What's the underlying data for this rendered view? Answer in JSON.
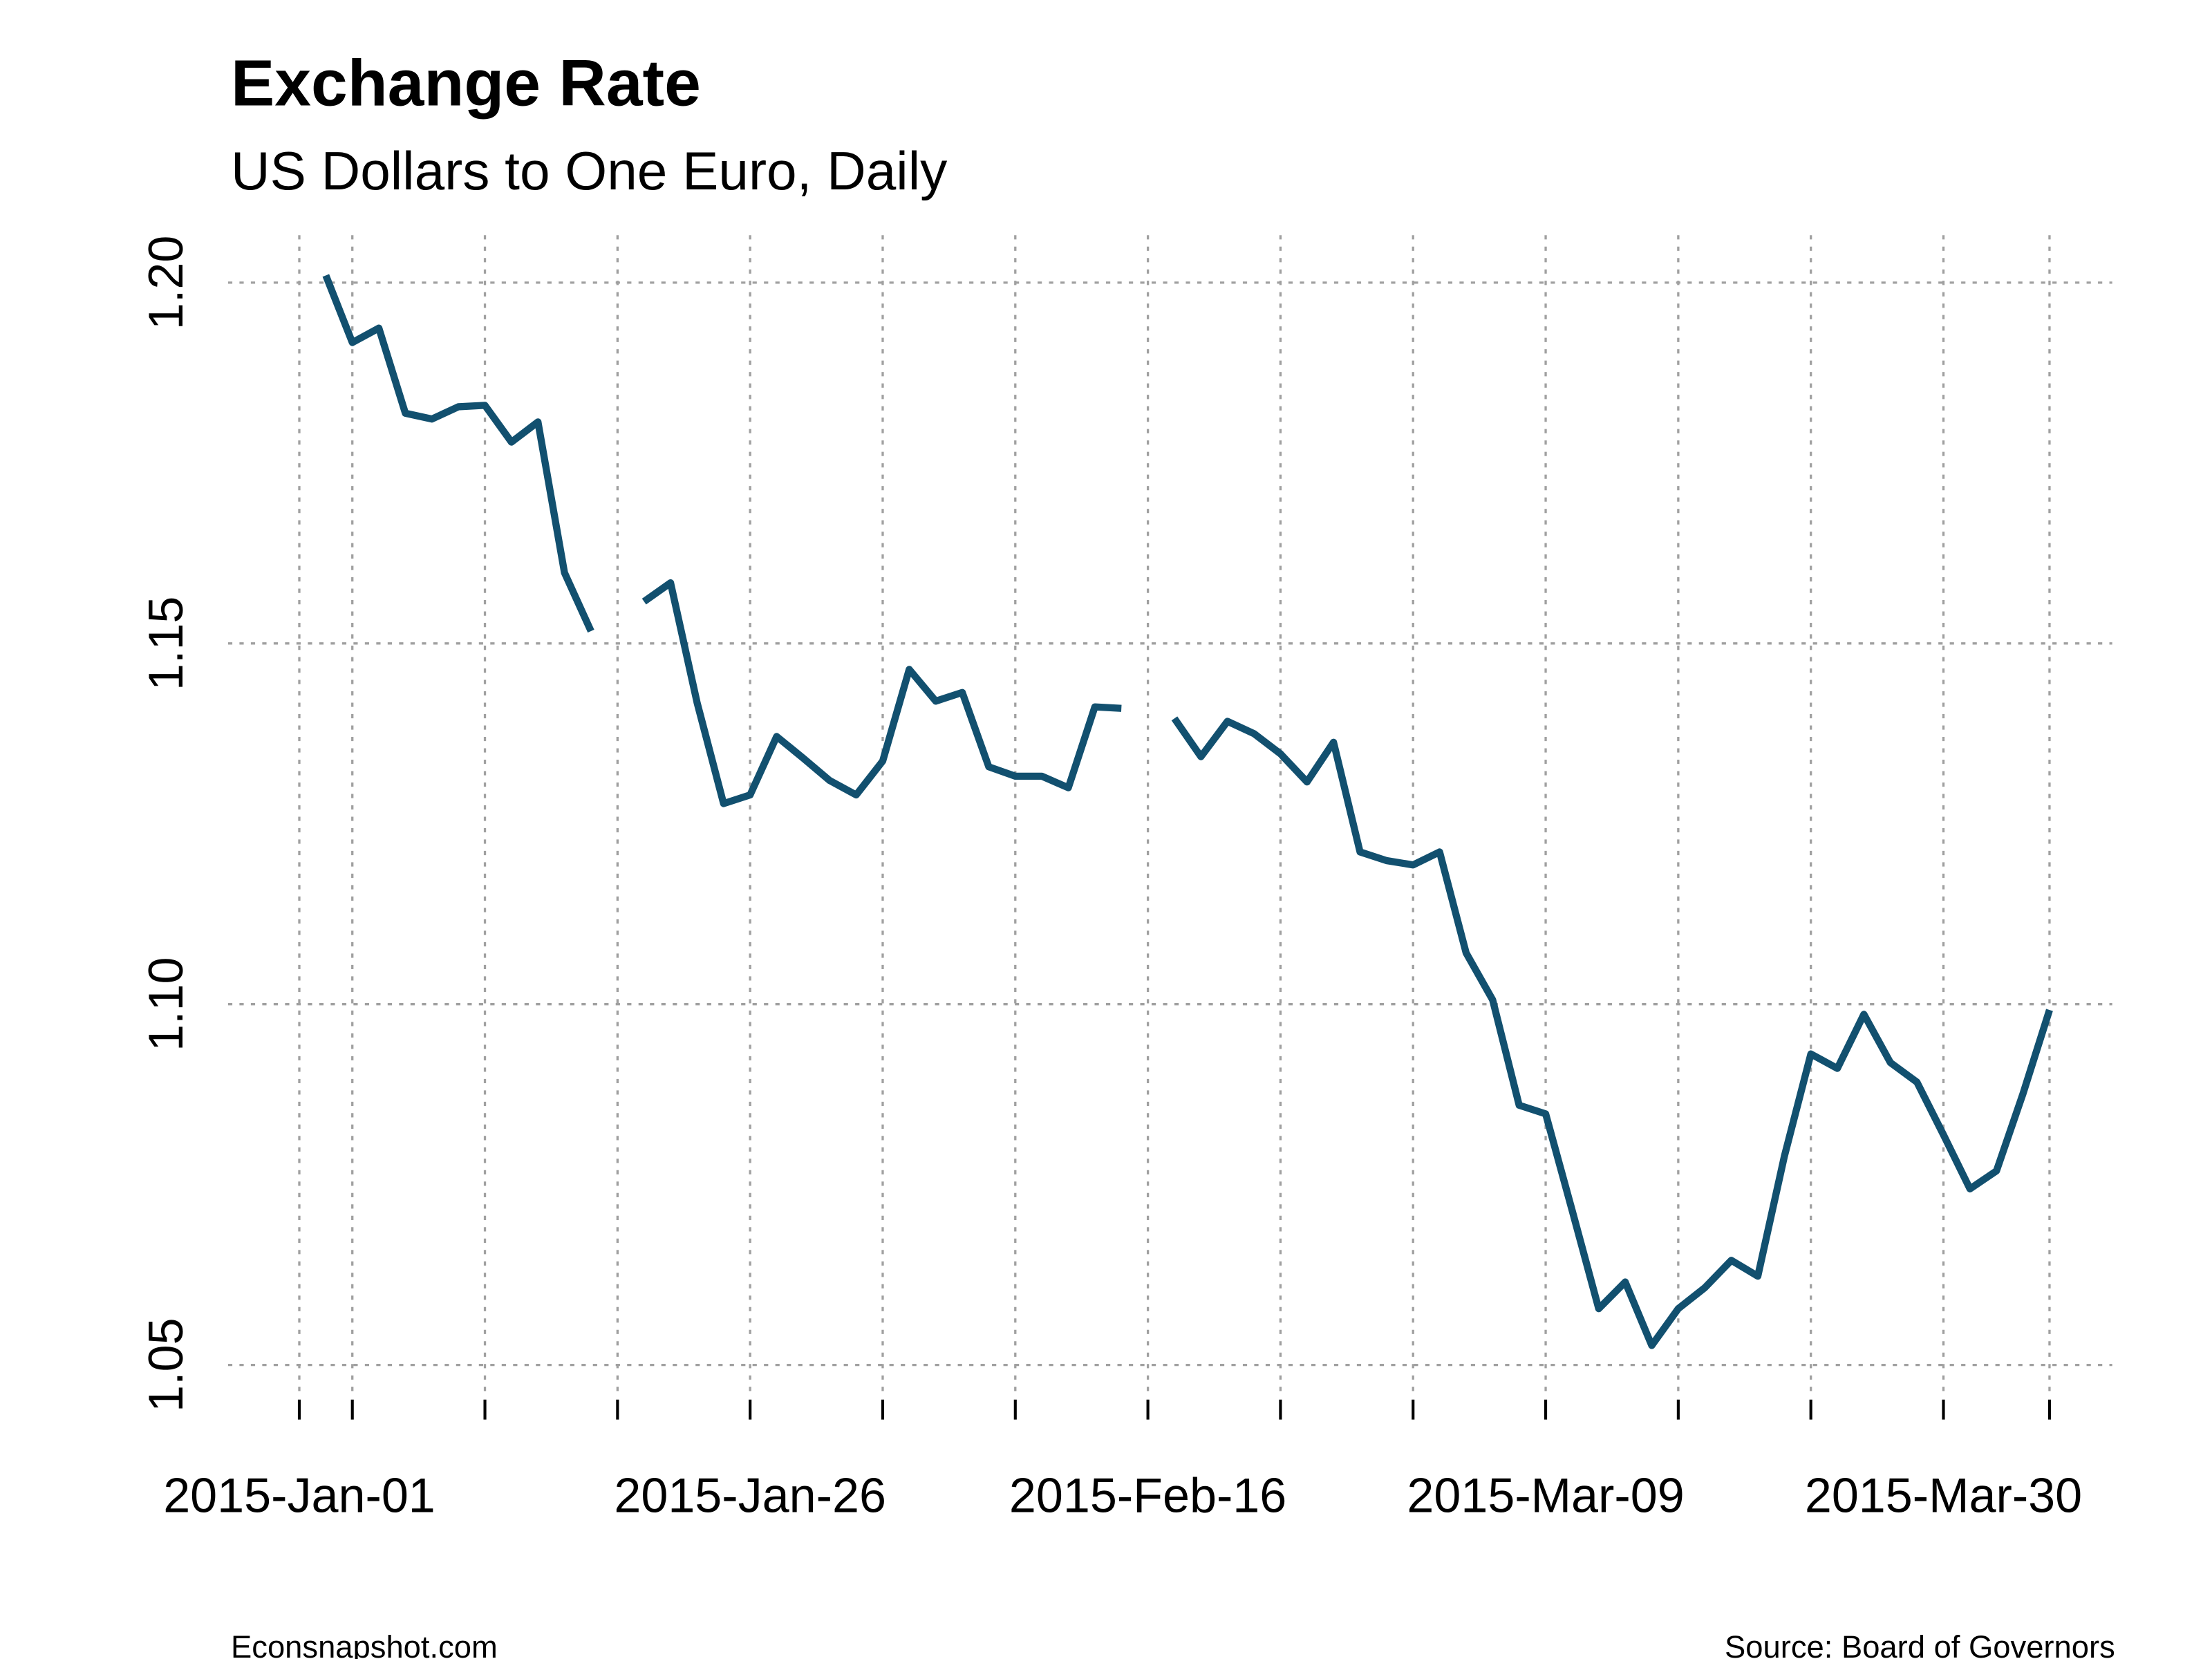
{
  "chart_data": {
    "type": "line",
    "title": "Exchange Rate",
    "subtitle": "US Dollars to One Euro, Daily",
    "footer_left": "Econsnapshot.com",
    "footer_right": "Source: Board of Governors",
    "x": [
      "2015-01-01",
      "2015-01-02",
      "2015-01-05",
      "2015-01-06",
      "2015-01-07",
      "2015-01-08",
      "2015-01-09",
      "2015-01-12",
      "2015-01-13",
      "2015-01-14",
      "2015-01-15",
      "2015-01-16",
      "2015-01-19",
      "2015-01-20",
      "2015-01-21",
      "2015-01-22",
      "2015-01-23",
      "2015-01-26",
      "2015-01-27",
      "2015-01-28",
      "2015-01-29",
      "2015-01-30",
      "2015-02-02",
      "2015-02-03",
      "2015-02-04",
      "2015-02-05",
      "2015-02-06",
      "2015-02-09",
      "2015-02-10",
      "2015-02-11",
      "2015-02-12",
      "2015-02-13",
      "2015-02-16",
      "2015-02-17",
      "2015-02-18",
      "2015-02-19",
      "2015-02-20",
      "2015-02-23",
      "2015-02-24",
      "2015-02-25",
      "2015-02-26",
      "2015-02-27",
      "2015-03-02",
      "2015-03-03",
      "2015-03-04",
      "2015-03-05",
      "2015-03-06",
      "2015-03-09",
      "2015-03-10",
      "2015-03-11",
      "2015-03-12",
      "2015-03-13",
      "2015-03-16",
      "2015-03-17",
      "2015-03-18",
      "2015-03-19",
      "2015-03-20",
      "2015-03-23",
      "2015-03-24",
      "2015-03-25",
      "2015-03-26",
      "2015-03-27",
      "2015-03-30",
      "2015-03-31",
      "2015-04-01",
      "2015-04-02",
      "2015-04-03"
    ],
    "series": [
      {
        "name": "US Dollars to One Euro",
        "color": "#12506f",
        "values": [
          null,
          1.201,
          1.1917,
          1.1937,
          1.1819,
          1.1811,
          1.1828,
          1.183,
          1.1779,
          1.1807,
          1.1598,
          1.1517,
          null,
          1.1558,
          1.1584,
          1.1418,
          1.1278,
          1.129,
          1.1371,
          1.1341,
          1.131,
          1.129,
          1.1337,
          1.1464,
          1.142,
          1.1432,
          1.1329,
          1.1316,
          1.1316,
          1.13,
          1.1412,
          1.141,
          null,
          1.1396,
          1.1343,
          1.1392,
          1.1375,
          1.1347,
          1.1308,
          1.1363,
          1.1211,
          1.1199,
          1.1193,
          1.1211,
          1.1071,
          1.1006,
          1.086,
          1.0848,
          1.0714,
          1.0578,
          1.0615,
          1.0527,
          1.0578,
          1.0607,
          1.0645,
          1.0623,
          1.0789,
          1.0931,
          1.0911,
          1.0986,
          1.0919,
          1.0892,
          1.0819,
          1.0744,
          1.0769,
          1.0876,
          1.0992
        ]
      }
    ],
    "ylim": [
      1.045,
      1.205
    ],
    "yticks": [
      {
        "value": 1.05,
        "label": "1.05"
      },
      {
        "value": 1.1,
        "label": "1.10"
      },
      {
        "value": 1.15,
        "label": "1.15"
      },
      {
        "value": 1.2,
        "label": "1.20"
      }
    ],
    "xticks": [
      {
        "value": "2015-01-01",
        "label": "2015-Jan-01"
      },
      {
        "value": "2015-01-26",
        "label": "2015-Jan-26"
      },
      {
        "value": "2015-02-16",
        "label": "2015-Feb-16"
      },
      {
        "value": "2015-03-09",
        "label": "2015-Mar-09"
      },
      {
        "value": "2015-03-30",
        "label": "2015-Mar-30"
      }
    ],
    "xticks_minor": [
      "2015-01-05",
      "2015-01-12",
      "2015-01-19",
      "2015-02-02",
      "2015-02-09",
      "2015-02-23",
      "2015-03-02",
      "2015-03-16",
      "2015-03-23",
      "2015-04-03"
    ],
    "grid": true
  }
}
